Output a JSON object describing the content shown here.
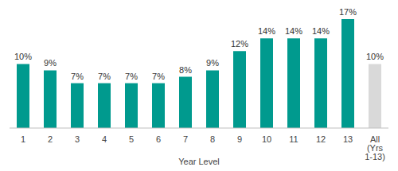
{
  "chart_data": {
    "type": "bar",
    "x_label": "Year Level",
    "categories": [
      "1",
      "2",
      "3",
      "4",
      "5",
      "6",
      "7",
      "8",
      "9",
      "10",
      "11",
      "12",
      "13",
      "All (Yrs 1-13)"
    ],
    "values": [
      10,
      9,
      7,
      7,
      7,
      7,
      8,
      9,
      12,
      14,
      14,
      14,
      17,
      10
    ],
    "value_labels": [
      "10%",
      "9%",
      "7%",
      "7%",
      "7%",
      "7%",
      "8%",
      "9%",
      "12%",
      "14%",
      "14%",
      "14%",
      "17%",
      "10%"
    ],
    "colors": [
      "#009a8e",
      "#009a8e",
      "#009a8e",
      "#009a8e",
      "#009a8e",
      "#009a8e",
      "#009a8e",
      "#009a8e",
      "#009a8e",
      "#009a8e",
      "#009a8e",
      "#009a8e",
      "#009a8e",
      "#d9d9d9"
    ],
    "data_labels": true,
    "tick_labels": "x",
    "grid": false
  }
}
